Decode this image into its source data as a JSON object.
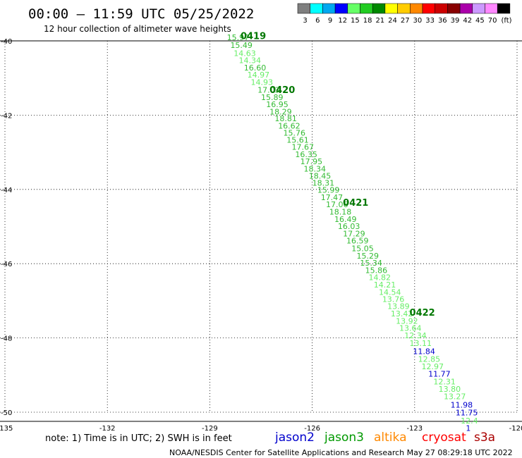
{
  "title": "00:00 – 11:59 UTC 05/25/2022",
  "subtitle": "12 hour collection of altimeter wave heights",
  "note": "note:  1) Time is in UTC;  2) SWH is in feet",
  "credit": "NOAA/NESDIS Center for Satellite Applications and Research     May 27 08:29:18 UTC 2022",
  "legend": {
    "unit": "(ft)",
    "bins": [
      {
        "label": "3",
        "color": "#7f7f7f"
      },
      {
        "label": "6",
        "color": "#00ffff"
      },
      {
        "label": "9",
        "color": "#00a8f0"
      },
      {
        "label": "12",
        "color": "#0000ff"
      },
      {
        "label": "15",
        "color": "#66ff66"
      },
      {
        "label": "18",
        "color": "#22cc22"
      },
      {
        "label": "21",
        "color": "#008800"
      },
      {
        "label": "24",
        "color": "#ffff00"
      },
      {
        "label": "27",
        "color": "#ffcc00"
      },
      {
        "label": "30",
        "color": "#ff8800"
      },
      {
        "label": "33",
        "color": "#ff0000"
      },
      {
        "label": "36",
        "color": "#cc0000"
      },
      {
        "label": "39",
        "color": "#880000"
      },
      {
        "label": "42",
        "color": "#aa00aa"
      },
      {
        "label": "45",
        "color": "#cc99ff"
      },
      {
        "label": "70",
        "color": "#ff88ff"
      },
      {
        "label": "",
        "color": "#000000"
      }
    ]
  },
  "satellites": [
    {
      "name": "jason2",
      "color": "#0000cc"
    },
    {
      "name": "jason3",
      "color": "#009900"
    },
    {
      "name": "altika",
      "color": "#ff8800"
    },
    {
      "name": "cryosat",
      "color": "#ff0000"
    },
    {
      "name": "s3a",
      "color": "#aa0000"
    }
  ],
  "chart_data": {
    "type": "scatter",
    "xlim": [
      -135,
      -120
    ],
    "ylim": [
      -50,
      -40
    ],
    "x_ticks": [
      "-135",
      "-132",
      "-129",
      "-126",
      "-123",
      "-120"
    ],
    "y_ticks": [
      "-40",
      "-42",
      "-44",
      "-46",
      "-48",
      "-50"
    ],
    "grid": true,
    "points": [
      {
        "x": -128.5,
        "y": -39.98,
        "value": "15.97",
        "color": "#33bb33"
      },
      {
        "x": -128.4,
        "y": -40.19,
        "value": "15.49",
        "color": "#33bb33"
      },
      {
        "x": -128.3,
        "y": -40.41,
        "value": "14.63",
        "color": "#66ee66"
      },
      {
        "x": -128.15,
        "y": -40.6,
        "value": "14.34",
        "color": "#66ee66"
      },
      {
        "x": -128.0,
        "y": -40.8,
        "value": "16.60",
        "color": "#33bb33"
      },
      {
        "x": -127.9,
        "y": -40.99,
        "value": "14.97",
        "color": "#66ee66"
      },
      {
        "x": -127.8,
        "y": -41.19,
        "value": "14.93",
        "color": "#66ee66"
      },
      {
        "x": -127.6,
        "y": -41.39,
        "value": "17.03",
        "color": "#33bb33"
      },
      {
        "x": -127.5,
        "y": -41.59,
        "value": "15.89",
        "color": "#33bb33"
      },
      {
        "x": -127.35,
        "y": -41.78,
        "value": "16.95",
        "color": "#33bb33"
      },
      {
        "x": -127.25,
        "y": -41.98,
        "value": "18.29",
        "color": "#33bb33"
      },
      {
        "x": -127.1,
        "y": -42.16,
        "value": "18.81",
        "color": "#33bb33"
      },
      {
        "x": -127.0,
        "y": -42.36,
        "value": "16.62",
        "color": "#33bb33"
      },
      {
        "x": -126.85,
        "y": -42.55,
        "value": "15.76",
        "color": "#33bb33"
      },
      {
        "x": -126.75,
        "y": -42.74,
        "value": "15.61",
        "color": "#33bb33"
      },
      {
        "x": -126.6,
        "y": -42.93,
        "value": "17.67",
        "color": "#33bb33"
      },
      {
        "x": -126.5,
        "y": -43.13,
        "value": "16.35",
        "color": "#33bb33"
      },
      {
        "x": -126.35,
        "y": -43.32,
        "value": "17.95",
        "color": "#33bb33"
      },
      {
        "x": -126.25,
        "y": -43.52,
        "value": "18.34",
        "color": "#33bb33"
      },
      {
        "x": -126.1,
        "y": -43.71,
        "value": "18.45",
        "color": "#33bb33"
      },
      {
        "x": -126.0,
        "y": -43.9,
        "value": "18.31",
        "color": "#33bb33"
      },
      {
        "x": -125.85,
        "y": -44.09,
        "value": "15.99",
        "color": "#33bb33"
      },
      {
        "x": -125.75,
        "y": -44.29,
        "value": "17.47",
        "color": "#33bb33"
      },
      {
        "x": -125.6,
        "y": -44.48,
        "value": "17.06",
        "color": "#33bb33"
      },
      {
        "x": -125.5,
        "y": -44.68,
        "value": "18.18",
        "color": "#33bb33"
      },
      {
        "x": -125.35,
        "y": -44.88,
        "value": "16.49",
        "color": "#33bb33"
      },
      {
        "x": -125.25,
        "y": -45.07,
        "value": "16.03",
        "color": "#33bb33"
      },
      {
        "x": -125.1,
        "y": -45.27,
        "value": "17.29",
        "color": "#33bb33"
      },
      {
        "x": -125.0,
        "y": -45.46,
        "value": "16.59",
        "color": "#33bb33"
      },
      {
        "x": -124.85,
        "y": -45.66,
        "value": "15.05",
        "color": "#33bb33"
      },
      {
        "x": -124.7,
        "y": -45.86,
        "value": "15.29",
        "color": "#33bb33"
      },
      {
        "x": -124.6,
        "y": -46.05,
        "value": "15.34",
        "color": "#33bb33"
      },
      {
        "x": -124.45,
        "y": -46.25,
        "value": "15.86",
        "color": "#33bb33"
      },
      {
        "x": -124.35,
        "y": -46.44,
        "value": "14.82",
        "color": "#66ee66"
      },
      {
        "x": -124.2,
        "y": -46.64,
        "value": "14.21",
        "color": "#66ee66"
      },
      {
        "x": -124.05,
        "y": -46.84,
        "value": "14.54",
        "color": "#66ee66"
      },
      {
        "x": -123.95,
        "y": -47.03,
        "value": "13.76",
        "color": "#66ee66"
      },
      {
        "x": -123.8,
        "y": -47.22,
        "value": "13.89",
        "color": "#66ee66"
      },
      {
        "x": -123.7,
        "y": -47.42,
        "value": "13.42",
        "color": "#66ee66"
      },
      {
        "x": -123.55,
        "y": -47.62,
        "value": "13.92",
        "color": "#66ee66"
      },
      {
        "x": -123.45,
        "y": -47.81,
        "value": "13.64",
        "color": "#66ee66"
      },
      {
        "x": -123.3,
        "y": -48.01,
        "value": "12.34",
        "color": "#66ee66"
      },
      {
        "x": -123.15,
        "y": -48.22,
        "value": "13.11",
        "color": "#66ee66"
      },
      {
        "x": -123.05,
        "y": -48.43,
        "value": "11.84",
        "color": "#0000cc"
      },
      {
        "x": -122.9,
        "y": -48.64,
        "value": "12.85",
        "color": "#66ee66"
      },
      {
        "x": -122.8,
        "y": -48.84,
        "value": "12.97",
        "color": "#66ee66"
      },
      {
        "x": -122.6,
        "y": -49.04,
        "value": "11.77",
        "color": "#0000cc"
      },
      {
        "x": -122.45,
        "y": -49.25,
        "value": "12.31",
        "color": "#66ee66"
      },
      {
        "x": -122.3,
        "y": -49.45,
        "value": "13.80",
        "color": "#66ee66"
      },
      {
        "x": -122.15,
        "y": -49.65,
        "value": "13.27",
        "color": "#66ee66"
      },
      {
        "x": -121.95,
        "y": -49.88,
        "value": "11.98",
        "color": "#0000cc"
      },
      {
        "x": -121.8,
        "y": -50.09,
        "value": "11.75",
        "color": "#0000cc"
      },
      {
        "x": -121.65,
        "y": -50.3,
        "value": "12.4",
        "color": "#66ee66"
      },
      {
        "x": -121.5,
        "y": -50.5,
        "value": "1",
        "color": "#0000cc"
      }
    ],
    "time_labels": [
      {
        "x": -128.1,
        "y": -39.95,
        "label": "0419"
      },
      {
        "x": -127.25,
        "y": -41.4,
        "label": "0420"
      },
      {
        "x": -125.1,
        "y": -44.44,
        "label": "0421"
      },
      {
        "x": -123.15,
        "y": -47.4,
        "label": "0422"
      }
    ]
  }
}
